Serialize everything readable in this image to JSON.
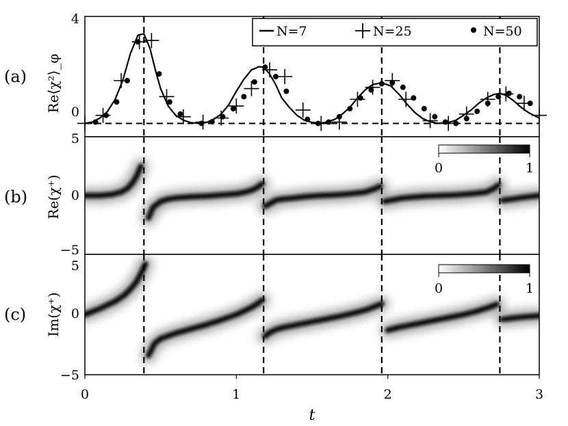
{
  "chart_data": [
    {
      "panel_label": "(a)",
      "type": "line",
      "ylabel": "Re⟨χ²⟩_φ",
      "xlim": [
        0,
        3
      ],
      "ylim": [
        -0.5,
        4
      ],
      "yticks": [
        "0",
        "4"
      ],
      "legend": {
        "position": "top-right",
        "entries": [
          "N=7",
          "N=25",
          "N=50"
        ]
      },
      "series": [
        {
          "name": "N=7",
          "style": "solid line",
          "x": [
            0.0,
            0.05,
            0.1,
            0.15,
            0.2,
            0.25,
            0.3,
            0.35,
            0.39,
            0.43,
            0.47,
            0.5,
            0.55,
            0.6,
            0.65,
            0.7,
            0.75,
            0.8,
            0.85,
            0.9,
            0.95,
            1.0,
            1.05,
            1.1,
            1.15,
            1.18,
            1.22,
            1.26,
            1.3,
            1.35,
            1.4,
            1.45,
            1.5,
            1.55,
            1.6,
            1.65,
            1.7,
            1.75,
            1.8,
            1.85,
            1.9,
            1.96,
            2.02,
            2.08,
            2.13,
            2.18,
            2.23,
            2.28,
            2.33,
            2.4,
            2.45,
            2.5,
            2.55,
            2.6,
            2.65,
            2.7,
            2.74,
            2.78,
            2.83,
            2.88,
            2.93,
            3.0
          ],
          "y": [
            0.0,
            0.05,
            0.2,
            0.45,
            0.9,
            1.6,
            2.6,
            3.3,
            3.35,
            2.8,
            1.9,
            1.3,
            0.65,
            0.3,
            0.12,
            0.03,
            0.0,
            0.03,
            0.15,
            0.35,
            0.7,
            1.2,
            1.65,
            2.0,
            2.12,
            2.1,
            1.85,
            1.45,
            0.95,
            0.6,
            0.3,
            0.12,
            0.04,
            0.0,
            0.05,
            0.15,
            0.35,
            0.6,
            0.95,
            1.25,
            1.45,
            1.52,
            1.4,
            1.05,
            0.7,
            0.4,
            0.18,
            0.06,
            0.0,
            0.03,
            0.12,
            0.3,
            0.5,
            0.75,
            0.95,
            1.08,
            1.12,
            1.05,
            0.85,
            0.6,
            0.4,
            0.2
          ]
        },
        {
          "name": "N=25",
          "style": "plus markers",
          "x": [
            0.0,
            0.12,
            0.24,
            0.36,
            0.44,
            0.54,
            0.65,
            0.78,
            0.9,
            1.0,
            1.1,
            1.22,
            1.32,
            1.44,
            1.56,
            1.68,
            1.8,
            1.9,
            2.03,
            2.12,
            2.28,
            2.4,
            2.52,
            2.66,
            2.78,
            2.9,
            3.0
          ],
          "y": [
            0.0,
            0.3,
            1.6,
            3.05,
            3.1,
            1.0,
            0.25,
            0.05,
            0.2,
            0.65,
            1.3,
            2.0,
            1.75,
            0.5,
            0.0,
            0.05,
            0.9,
            1.35,
            1.6,
            0.9,
            0.1,
            0.0,
            0.35,
            0.9,
            1.1,
            0.75,
            0.3
          ]
        },
        {
          "name": "N=50",
          "style": "dot markers",
          "x": [
            0.07,
            0.14,
            0.21,
            0.28,
            0.35,
            0.49,
            0.56,
            0.63,
            0.77,
            0.84,
            0.91,
            0.98,
            1.05,
            1.12,
            1.19,
            1.26,
            1.33,
            1.47,
            1.54,
            1.61,
            1.68,
            1.75,
            1.82,
            1.89,
            1.96,
            2.03,
            2.1,
            2.17,
            2.24,
            2.31,
            2.38,
            2.45,
            2.52,
            2.59,
            2.66,
            2.73,
            2.8,
            2.87,
            2.94
          ],
          "y": [
            0.05,
            0.3,
            0.8,
            1.6,
            3.05,
            1.85,
            0.8,
            0.35,
            0.0,
            0.06,
            0.25,
            0.55,
            1.0,
            1.55,
            2.1,
            1.75,
            1.2,
            0.15,
            0.0,
            0.05,
            0.25,
            0.55,
            0.95,
            1.25,
            1.48,
            1.52,
            1.35,
            0.95,
            0.55,
            0.25,
            0.05,
            0.0,
            0.18,
            0.45,
            0.75,
            1.0,
            1.12,
            1.0,
            0.75
          ]
        }
      ],
      "vlines_x": [
        0.39,
        1.18,
        1.96,
        2.74
      ],
      "hline_y": 0
    },
    {
      "panel_label": "(b)",
      "type": "heatmap",
      "ylabel": "Re(χ⁺)",
      "xlim": [
        0,
        3
      ],
      "ylim": [
        -5,
        5
      ],
      "yticks": [
        "−5",
        "0",
        "5"
      ],
      "colorbar": {
        "min": "0",
        "max": "1",
        "colormap": "white-to-black"
      },
      "ridge": {
        "x": [
          0.0,
          0.1,
          0.18,
          0.24,
          0.28,
          0.31,
          0.34,
          0.37,
          0.4,
          0.42,
          0.45,
          0.5,
          0.55,
          0.6,
          0.7,
          0.8,
          0.9,
          1.0,
          1.06,
          1.1,
          1.14,
          1.17,
          1.19,
          1.22,
          1.26,
          1.3,
          1.35,
          1.45,
          1.55,
          1.65,
          1.75,
          1.85,
          1.92,
          1.95,
          1.98,
          2.02,
          2.08,
          2.15,
          2.25,
          2.35,
          2.45,
          2.55,
          2.65,
          2.7,
          2.73,
          2.76,
          2.82,
          2.9,
          3.0
        ],
        "y": [
          0.0,
          0.0,
          0.1,
          0.3,
          0.6,
          1.0,
          1.6,
          2.5,
          3.8,
          -1.9,
          -1.0,
          -0.5,
          -0.3,
          -0.2,
          -0.1,
          -0.05,
          0.05,
          0.15,
          0.3,
          0.45,
          0.7,
          1.0,
          -0.9,
          -0.7,
          -0.4,
          -0.3,
          -0.25,
          -0.1,
          0.0,
          0.05,
          0.15,
          0.3,
          0.6,
          0.8,
          -0.5,
          -0.4,
          -0.25,
          -0.15,
          -0.05,
          0.0,
          0.05,
          0.15,
          0.3,
          0.6,
          0.9,
          -0.4,
          -0.3,
          -0.15,
          0.0
        ]
      },
      "vlines_x": [
        0.39,
        1.18,
        1.96,
        2.74
      ]
    },
    {
      "panel_label": "(c)",
      "type": "heatmap",
      "ylabel": "Im(χ⁺)",
      "xlim": [
        0,
        3
      ],
      "xlabel": "t",
      "xticks": [
        "0",
        "1",
        "2",
        "3"
      ],
      "ylim": [
        -5,
        5
      ],
      "yticks": [
        "−5",
        "0",
        "5"
      ],
      "colorbar": {
        "min": "0",
        "max": "1",
        "colormap": "white-to-black"
      },
      "ridge": {
        "x": [
          0.0,
          0.1,
          0.2,
          0.26,
          0.3,
          0.34,
          0.37,
          0.4,
          0.42,
          0.46,
          0.5,
          0.6,
          0.7,
          0.8,
          0.9,
          1.0,
          1.06,
          1.1,
          1.14,
          1.17,
          1.19,
          1.22,
          1.26,
          1.3,
          1.4,
          1.5,
          1.6,
          1.7,
          1.8,
          1.87,
          1.92,
          1.96,
          2.0,
          2.06,
          2.1,
          2.2,
          2.3,
          2.4,
          2.5,
          2.58,
          2.63,
          2.68,
          2.72,
          2.76,
          2.82,
          2.9,
          3.0
        ],
        "y": [
          0.0,
          0.5,
          1.1,
          1.6,
          2.1,
          2.7,
          3.4,
          4.2,
          -3.4,
          -2.4,
          -2.0,
          -1.55,
          -1.2,
          -0.85,
          -0.45,
          0.0,
          0.35,
          0.6,
          0.9,
          1.2,
          -1.8,
          -1.5,
          -1.25,
          -1.1,
          -0.85,
          -0.6,
          -0.35,
          -0.1,
          0.2,
          0.45,
          0.7,
          0.9,
          -1.3,
          -1.1,
          -1.0,
          -0.75,
          -0.5,
          -0.25,
          0.0,
          0.25,
          0.45,
          0.65,
          0.85,
          -0.4,
          -0.3,
          -0.2,
          -0.1
        ]
      },
      "vlines_x": [
        0.39,
        1.18,
        1.96,
        2.74
      ]
    }
  ]
}
